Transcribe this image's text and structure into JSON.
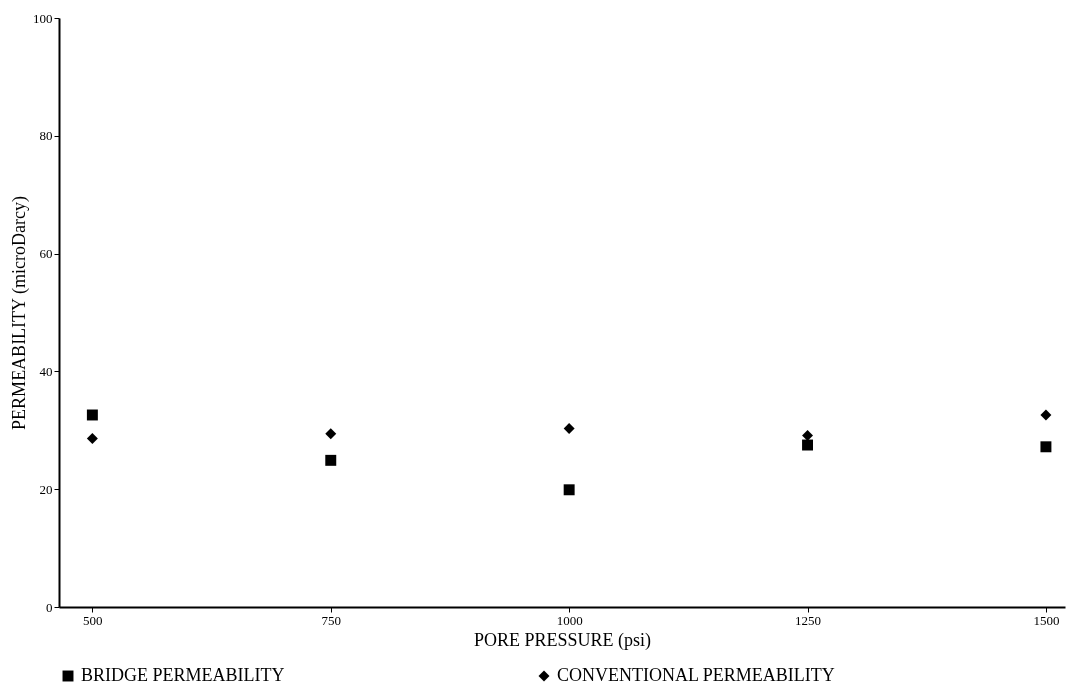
{
  "chart_data": {
    "type": "scatter",
    "xlabel": "PORE PRESSURE (psi)",
    "ylabel": "PERMEABILITY (microDarcy)",
    "x": [
      500,
      750,
      1000,
      1250,
      1500
    ],
    "series": [
      {
        "name": "BRIDGE PERMEABILITY",
        "color": "#000000",
        "marker": "square",
        "values": [
          32.6,
          24.9,
          19.9,
          27.5,
          27.2
        ]
      },
      {
        "name": "CONVENTIONAL PERMEABILITY",
        "color": "#000000",
        "marker": "diamond",
        "values": [
          28.6,
          29.4,
          30.3,
          29.1,
          32.6
        ]
      }
    ],
    "xlim": [
      465,
      1520
    ],
    "xticks": [
      500,
      750,
      1000,
      1250,
      1500
    ],
    "ylim": [
      0,
      100
    ],
    "yticks": [
      0,
      20,
      40,
      60,
      80,
      100
    ],
    "grid": false,
    "legend": "bottom"
  }
}
